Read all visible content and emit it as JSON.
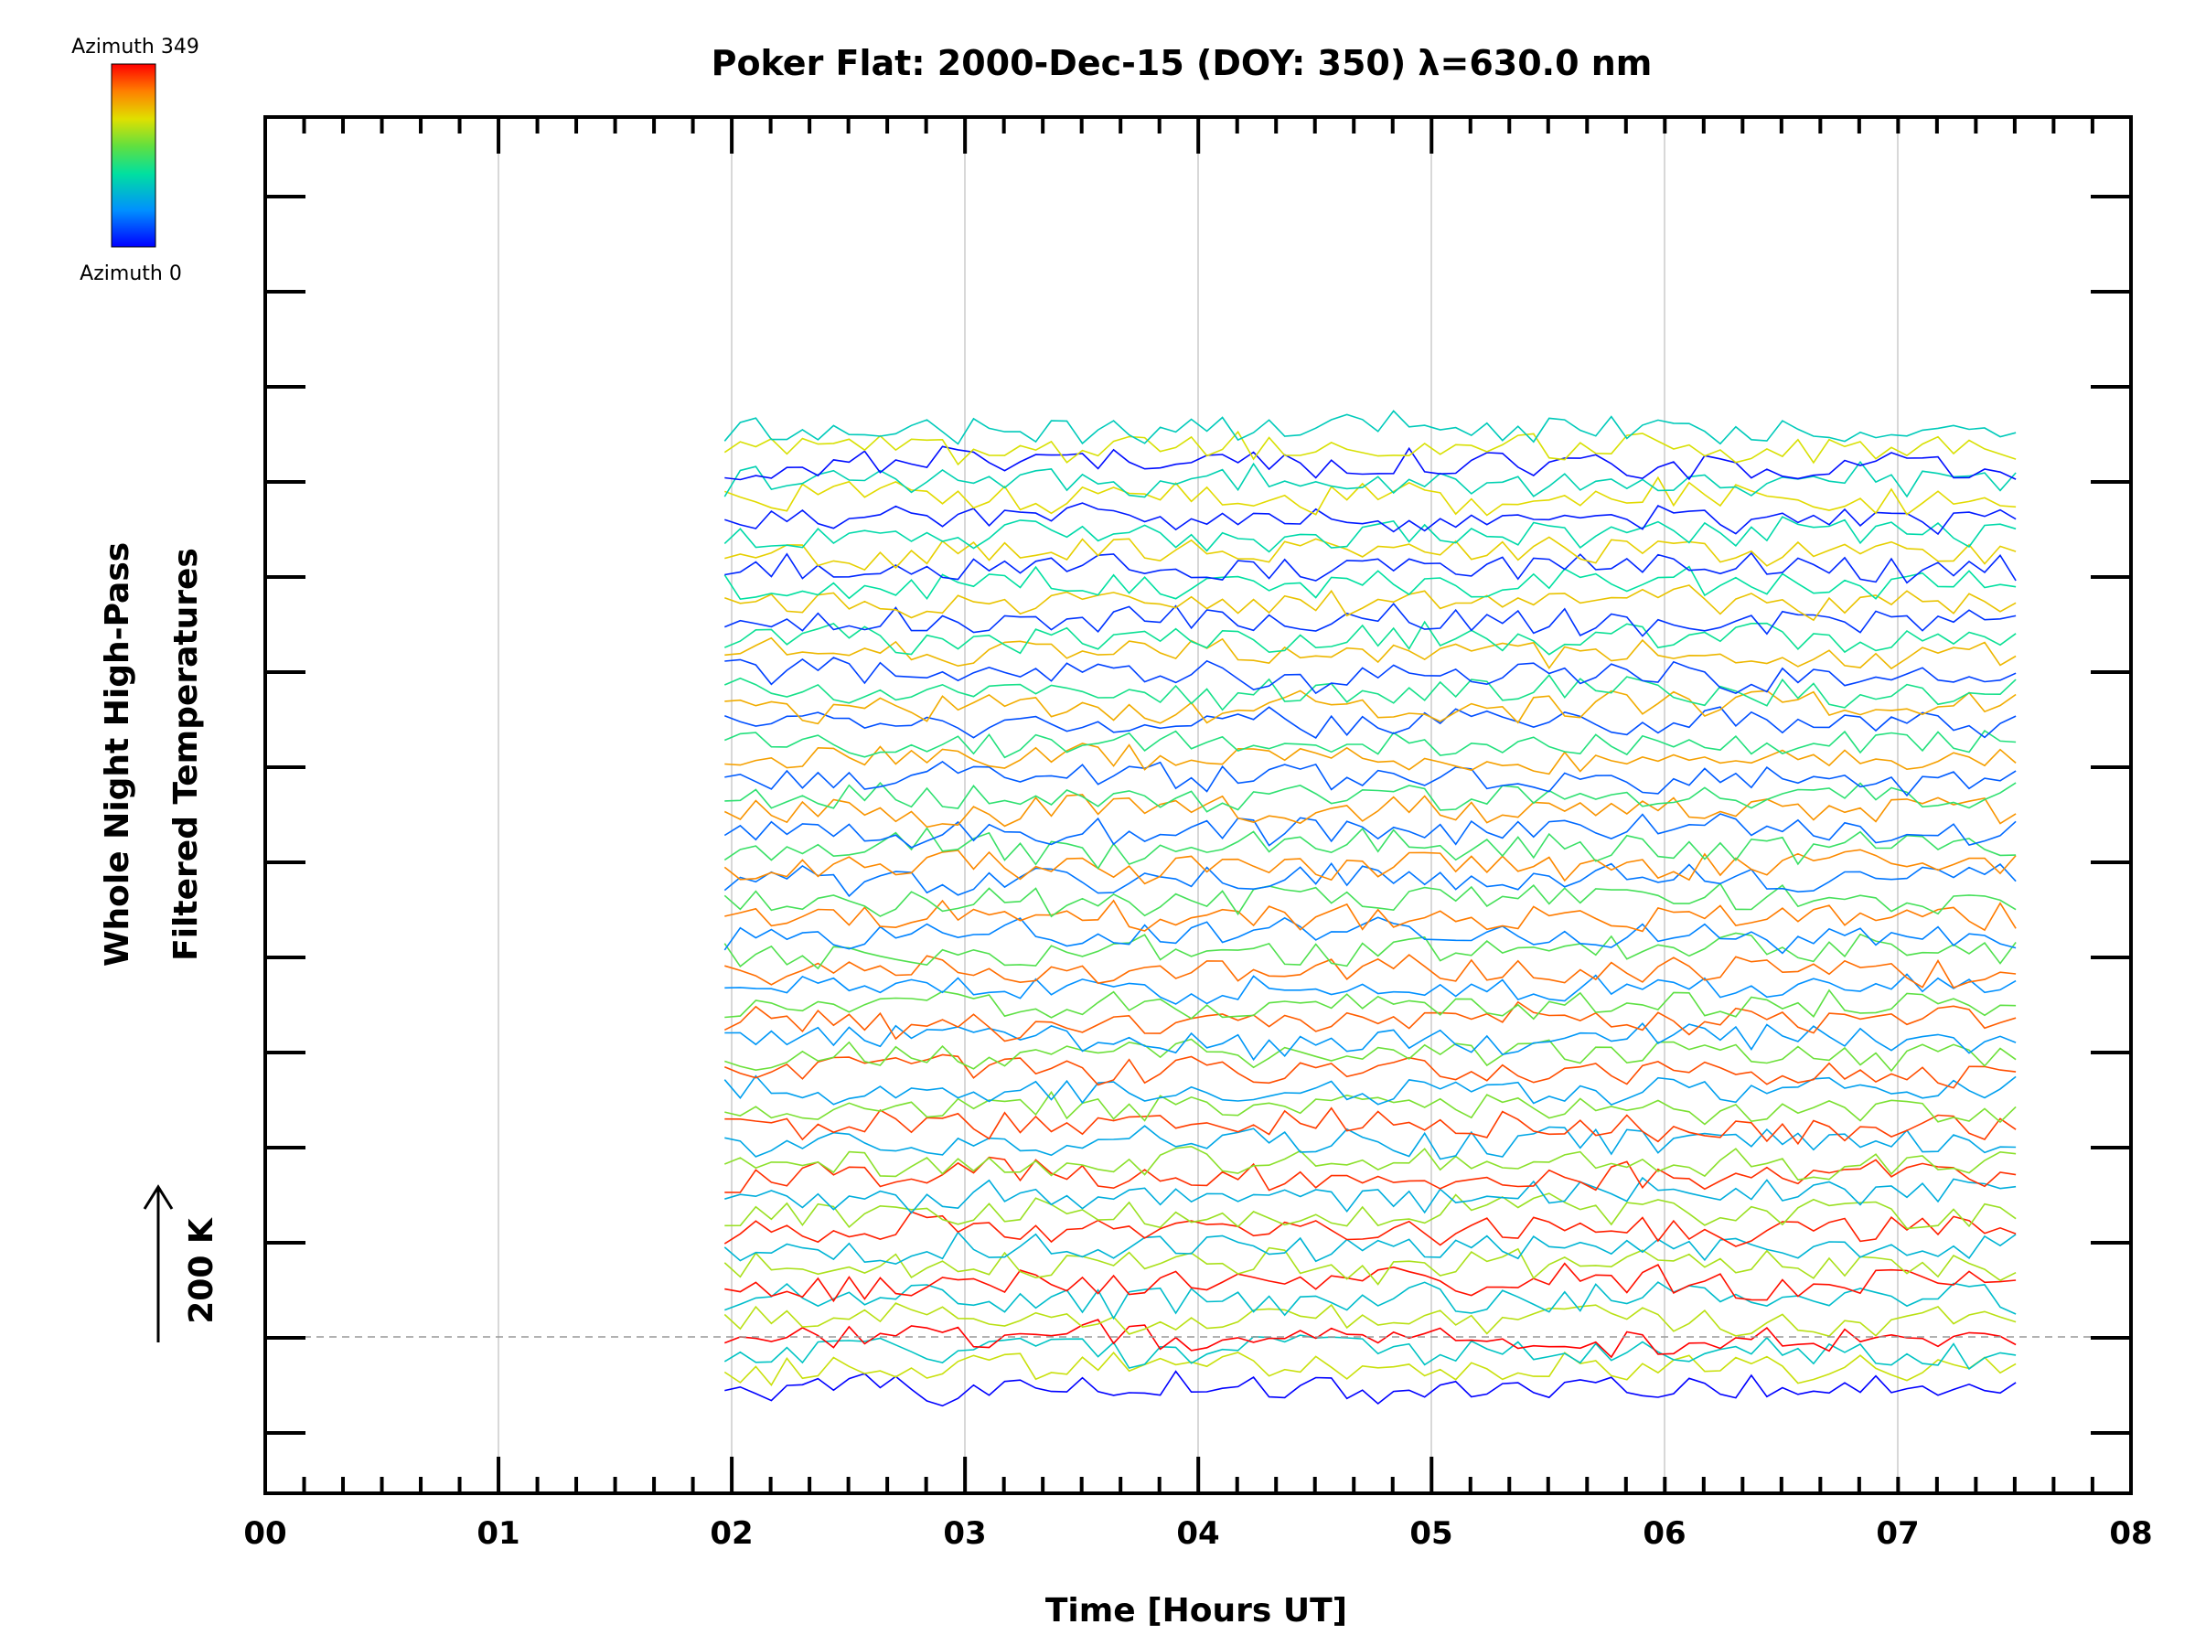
{
  "chart_data": {
    "type": "line",
    "title": "Poker Flat: 2000-Dec-15 (DOY: 350) λ=630.0 nm",
    "xlabel": "Time [Hours UT]",
    "ylabel_line1": "Whole Night High-Pass",
    "ylabel_line2": "Filtered Temperatures",
    "scale_label": "200 K",
    "x_tick_labels": [
      "00",
      "01",
      "02",
      "03",
      "04",
      "05",
      "06",
      "07",
      "08"
    ],
    "xlim": [
      0,
      8
    ],
    "x_minor_step_hours": 0.1667,
    "y_major_tick_count": 14,
    "grid": "vertical lines at each hour",
    "colorbar": {
      "top_label": "Azimuth 349",
      "bottom_label": "Azimuth 0",
      "colormap": "rainbow (blue at 0, red at 349)",
      "placement": "top-left"
    },
    "series_time_range": [
      1.97,
      7.55
    ],
    "series_time_step_hours": 0.0667,
    "series_count": 56,
    "series_vertical_spacing_K": 27,
    "series_noise_K": 35,
    "reference_line": "dashed horizontal line at baseline (200 K scale)",
    "note": "Individual trace values are not legible; traces are stacked high-pass filtered temperature series, one per azimuth."
  }
}
